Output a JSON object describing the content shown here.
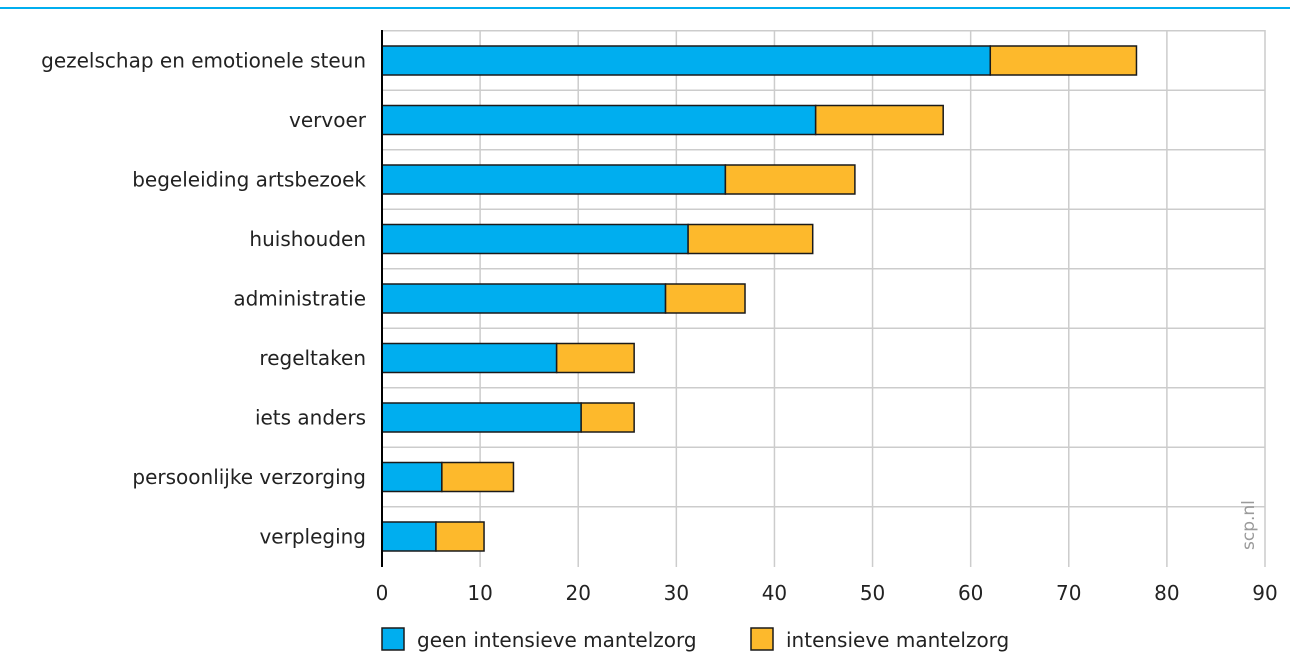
{
  "chart_data": {
    "type": "bar",
    "orientation": "horizontal",
    "stacked": true,
    "title": "",
    "xlabel": "",
    "ylabel": "",
    "xlim": [
      0,
      90
    ],
    "x_ticks": [
      "0",
      "10",
      "20",
      "30",
      "40",
      "50",
      "60",
      "70",
      "80",
      "90"
    ],
    "grid": true,
    "legend_position": "bottom",
    "watermark": "scp.nl",
    "categories": [
      "gezelschap en emotionele steun",
      "vervoer",
      "begeleiding artsbezoek",
      "huishouden",
      "administratie",
      "regeltaken",
      "iets anders",
      "persoonlijke verzorging",
      "verpleging"
    ],
    "series": [
      {
        "name": "geen intensieve mantelzorg",
        "color": "#00aeef",
        "values": [
          62,
          44.2,
          35,
          31.2,
          28.9,
          17.8,
          20.3,
          6.1,
          5.5
        ]
      },
      {
        "name": "intensieve mantelzorg",
        "color": "#fdb92c",
        "values": [
          14.9,
          13,
          13.2,
          12.7,
          8.1,
          7.9,
          5.4,
          7.3,
          4.9
        ]
      }
    ],
    "colors": {
      "top_rule": "#00aeef",
      "grid": "#cccccc",
      "axis": "#000000",
      "text": "#222222",
      "watermark": "#9a9a9a"
    }
  }
}
